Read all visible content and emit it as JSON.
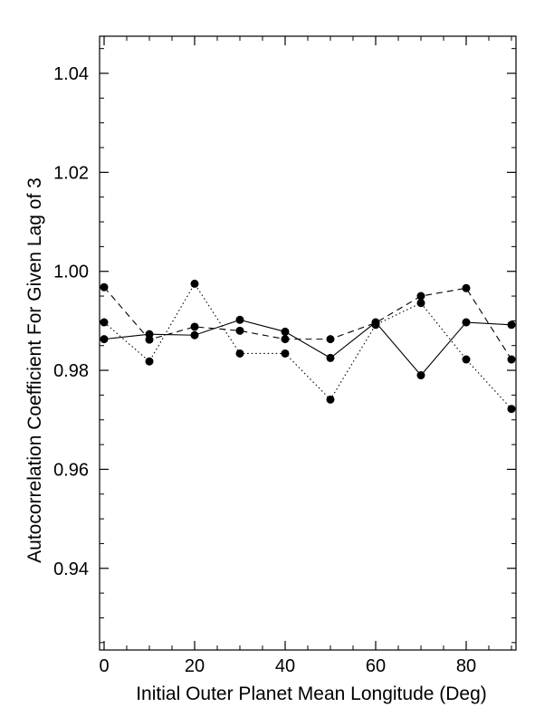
{
  "chart_data": {
    "type": "line",
    "title": "",
    "xlabel": "Initial Outer Planet Mean Longitude (Deg)",
    "ylabel": "Autocorrelation Coefficient For Given Lag of 3",
    "xlim": [
      -1,
      91
    ],
    "ylim": [
      0.9235,
      1.0475
    ],
    "x_ticks": [
      0,
      20,
      40,
      60,
      80
    ],
    "x_tick_labels": [
      "0",
      "20",
      "40",
      "60",
      "80"
    ],
    "y_ticks": [
      0.94,
      0.96,
      0.98,
      1.0,
      1.02,
      1.04
    ],
    "y_tick_labels": [
      "0.94",
      "0.96",
      "0.98",
      "1.00",
      "1.02",
      "1.04"
    ],
    "x_minor_step": 5,
    "y_minor_step": 0.005,
    "grid": false,
    "legend": "none",
    "x": [
      0,
      10,
      20,
      30,
      40,
      50,
      60,
      70,
      80,
      90
    ],
    "series": [
      {
        "line_style": "solid",
        "color": "#000000",
        "values": [
          0.9863,
          0.9873,
          0.9871,
          0.9902,
          0.9878,
          0.9825,
          0.9897,
          0.979,
          0.9897,
          0.9892
        ]
      },
      {
        "line_style": "dashed",
        "color": "#000000",
        "values": [
          0.9968,
          0.9862,
          0.9888,
          0.988,
          0.9863,
          0.9863,
          0.9896,
          0.995,
          0.9966,
          0.9822
        ]
      },
      {
        "line_style": "dotted",
        "color": "#000000",
        "values": [
          0.9897,
          0.9818,
          0.9975,
          0.9834,
          0.9834,
          0.9741,
          0.9892,
          0.9936,
          0.9822,
          0.9722
        ]
      }
    ]
  }
}
